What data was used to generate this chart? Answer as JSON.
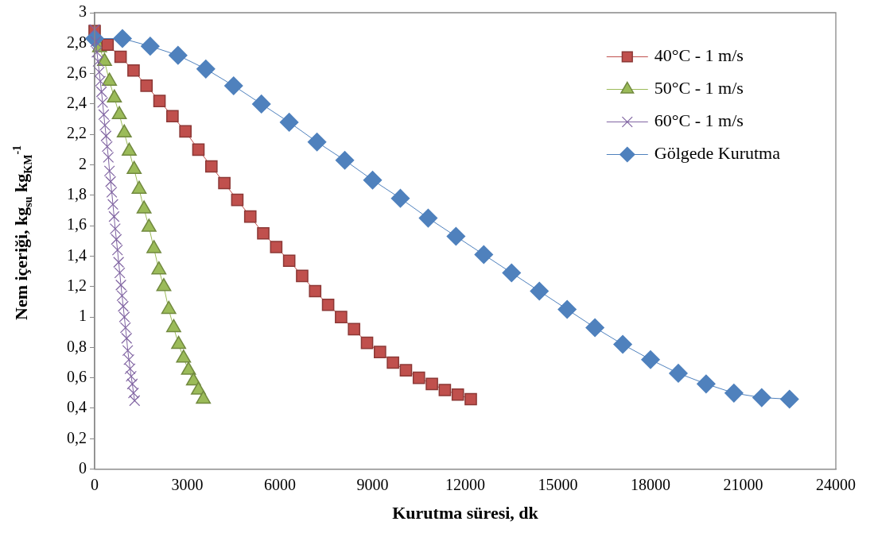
{
  "chart_data": {
    "type": "line",
    "xlabel": "Kurutma süresi, dk",
    "ylabel": "Nem içeriği, kg$_{su}$ kg$_{KM}$$^{-1}$",
    "xlim": [
      0,
      24000
    ],
    "xticks": [
      0,
      3000,
      6000,
      9000,
      12000,
      15000,
      18000,
      21000,
      24000
    ],
    "ylim": [
      0,
      3
    ],
    "yticks": [
      0,
      {
        "value": 0.2,
        "label": "0,2"
      },
      {
        "value": 0.4,
        "label": "0,4"
      },
      {
        "value": 0.6,
        "label": "0,6"
      },
      {
        "value": 0.8,
        "label": "0,8"
      },
      1,
      {
        "value": 1.2,
        "label": "1,2"
      },
      {
        "value": 1.4,
        "label": "1,4"
      },
      {
        "value": 1.6,
        "label": "1,6"
      },
      {
        "value": 1.8,
        "label": "1,8"
      },
      2,
      {
        "value": 2.2,
        "label": "2,2"
      },
      {
        "value": 2.4,
        "label": "2,4"
      },
      {
        "value": 2.6,
        "label": "2,6"
      },
      {
        "value": 2.8,
        "label": "2,8"
      },
      3
    ],
    "grid": false,
    "legend": "top right",
    "line_style": "solid",
    "series": [
      {
        "name": "40°C - 1 m/s",
        "color": "#c0504d",
        "marker": "square",
        "x": [
          0,
          420,
          840,
          1260,
          1680,
          2100,
          2520,
          2940,
          3360,
          3780,
          4200,
          4620,
          5040,
          5460,
          5880,
          6300,
          6720,
          7140,
          7560,
          7980,
          8400,
          8820,
          9240,
          9660,
          10080,
          10500,
          10920,
          11340,
          11760,
          12180
        ],
        "values": [
          2.88,
          2.79,
          2.71,
          2.62,
          2.52,
          2.42,
          2.32,
          2.22,
          2.1,
          1.99,
          1.88,
          1.77,
          1.66,
          1.55,
          1.46,
          1.37,
          1.27,
          1.17,
          1.08,
          1.0,
          0.92,
          0.83,
          0.77,
          0.7,
          0.65,
          0.6,
          0.56,
          0.52,
          0.49,
          0.46
        ]
      },
      {
        "name": "50°C - 1 m/s",
        "color": "#9bbb59",
        "marker": "triangle",
        "x": [
          160,
          320,
          480,
          640,
          800,
          960,
          1120,
          1280,
          1440,
          1600,
          1760,
          1920,
          2080,
          2240,
          2400,
          2560,
          2720,
          2880,
          3040,
          3200,
          3360,
          3520
        ],
        "values": [
          2.77,
          2.68,
          2.55,
          2.44,
          2.33,
          2.21,
          2.09,
          1.97,
          1.84,
          1.71,
          1.59,
          1.45,
          1.31,
          1.2,
          1.05,
          0.93,
          0.82,
          0.73,
          0.65,
          0.58,
          0.52,
          0.46
        ]
      },
      {
        "name": "60°C - 1 m/s",
        "color": "#8064a2",
        "marker": "cross",
        "x": [
          0,
          37,
          74,
          111,
          148,
          185,
          222,
          259,
          296,
          333,
          370,
          407,
          444,
          481,
          518,
          555,
          592,
          629,
          666,
          703,
          740,
          777,
          814,
          851,
          888,
          925,
          962,
          999,
          1036,
          1073,
          1110,
          1147,
          1184,
          1221,
          1258,
          1295
        ],
        "values": [
          2.89,
          2.81,
          2.74,
          2.68,
          2.61,
          2.55,
          2.48,
          2.41,
          2.33,
          2.26,
          2.19,
          2.12,
          2.05,
          1.96,
          1.89,
          1.82,
          1.74,
          1.66,
          1.58,
          1.51,
          1.44,
          1.36,
          1.29,
          1.21,
          1.14,
          1.07,
          1.0,
          0.93,
          0.86,
          0.78,
          0.72,
          0.66,
          0.61,
          0.56,
          0.5,
          0.45
        ]
      },
      {
        "name": "Gölgede Kurutma",
        "color": "#4f81bd",
        "marker": "diamond",
        "x": [
          0,
          900,
          1800,
          2700,
          3600,
          4500,
          5400,
          6300,
          7200,
          8100,
          9000,
          9900,
          10800,
          11700,
          12600,
          13500,
          14400,
          15300,
          16200,
          17100,
          18000,
          18900,
          19800,
          20700,
          21600,
          22500
        ],
        "values": [
          2.83,
          2.83,
          2.78,
          2.72,
          2.63,
          2.52,
          2.4,
          2.28,
          2.15,
          2.03,
          1.9,
          1.78,
          1.65,
          1.53,
          1.41,
          1.29,
          1.17,
          1.05,
          0.93,
          0.82,
          0.72,
          0.63,
          0.56,
          0.5,
          0.47,
          0.46
        ]
      }
    ]
  }
}
